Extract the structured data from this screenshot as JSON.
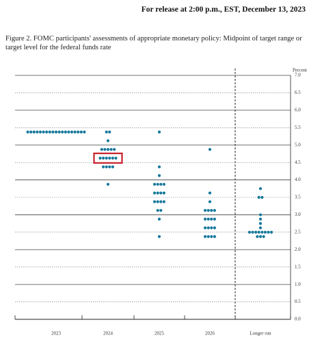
{
  "header": {
    "release": "For release at 2:00 p.m., EST, December 13, 2023"
  },
  "chart_data": {
    "type": "dot",
    "title": "Figure 2.  FOMC participants' assessments of appropriate monetary policy:  Midpoint of target range or target level for the federal funds rate",
    "y_label": "Percent",
    "ylim": [
      0,
      7
    ],
    "yticks": [
      {
        "value": 0,
        "label": "0.0"
      },
      0.5,
      {
        "value": 1,
        "label": "1.0"
      },
      1.5,
      {
        "value": 2,
        "label": "2.0"
      },
      2.5,
      {
        "value": 3,
        "label": "3.0"
      },
      3.5,
      {
        "value": 4,
        "label": "4.0"
      },
      4.5,
      {
        "value": 5,
        "label": "5.0"
      },
      5.5,
      {
        "value": 6,
        "label": "6.0"
      },
      6.5,
      {
        "value": 7,
        "label": "7.0"
      }
    ],
    "categories": [
      "2023",
      "2024",
      "2025",
      "2026",
      "Longer run"
    ],
    "color": "#16789b",
    "highlight_color": "#c8202a",
    "groups": [
      [
        {
          "rate": 5.375,
          "count": 19
        }
      ],
      [
        {
          "rate": 5.375,
          "count": 2
        },
        {
          "rate": 5.125,
          "count": 1
        },
        {
          "rate": 4.875,
          "count": 5
        },
        {
          "rate": 4.625,
          "count": 6,
          "highlight": true
        },
        {
          "rate": 4.375,
          "count": 4
        },
        {
          "rate": 3.875,
          "count": 1
        }
      ],
      [
        {
          "rate": 5.375,
          "count": 1
        },
        {
          "rate": 4.375,
          "count": 1
        },
        {
          "rate": 4.125,
          "count": 1
        },
        {
          "rate": 3.875,
          "count": 4
        },
        {
          "rate": 3.625,
          "count": 4
        },
        {
          "rate": 3.375,
          "count": 4
        },
        {
          "rate": 3.125,
          "count": 2
        },
        {
          "rate": 2.875,
          "count": 1
        },
        {
          "rate": 2.375,
          "count": 1
        }
      ],
      [
        {
          "rate": 4.875,
          "count": 1
        },
        {
          "rate": 3.625,
          "count": 1
        },
        {
          "rate": 3.375,
          "count": 1
        },
        {
          "rate": 3.125,
          "count": 4
        },
        {
          "rate": 2.875,
          "count": 4
        },
        {
          "rate": 2.625,
          "count": 4
        },
        {
          "rate": 2.375,
          "count": 4
        }
      ],
      [
        {
          "rate": 3.75,
          "count": 1
        },
        {
          "rate": 3.5,
          "count": 2
        },
        {
          "rate": 3.0,
          "count": 1
        },
        {
          "rate": 2.875,
          "count": 1
        },
        {
          "rate": 2.75,
          "count": 1
        },
        {
          "rate": 2.625,
          "count": 1
        },
        {
          "rate": 2.5,
          "count": 8
        },
        {
          "rate": 2.375,
          "count": 3
        }
      ]
    ]
  }
}
